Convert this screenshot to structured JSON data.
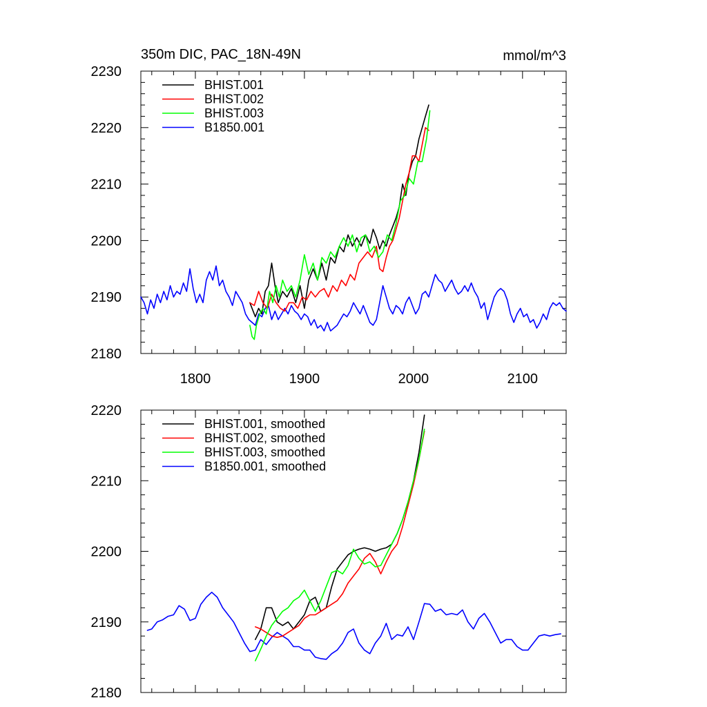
{
  "chart_data": [
    {
      "type": "line",
      "title": "350m DIC, PAC_18N-49N",
      "units": "mmol/m^3",
      "xlim": [
        1750,
        2140
      ],
      "ylim": [
        2180,
        2230
      ],
      "xticks": [
        1800,
        1900,
        2000,
        2100
      ],
      "yticks": [
        2180,
        2190,
        2200,
        2210,
        2220,
        2230
      ],
      "show_x_tick_labels": true,
      "grid": false,
      "legend_position": "top-left",
      "series": [
        {
          "name": "BHIST.001",
          "color": "#000000",
          "x": [
            1850,
            1855,
            1858,
            1861,
            1864,
            1867,
            1870,
            1873,
            1876,
            1880,
            1884,
            1888,
            1892,
            1896,
            1900,
            1904,
            1908,
            1912,
            1916,
            1920,
            1924,
            1928,
            1932,
            1936,
            1940,
            1944,
            1948,
            1952,
            1956,
            1960,
            1963,
            1966,
            1969,
            1972,
            1975,
            1978,
            1981,
            1984,
            1987,
            1990,
            1993,
            1996,
            1999,
            2002,
            2005,
            2008,
            2011,
            2014
          ],
          "y": [
            2189.0,
            2186.5,
            2188.0,
            2187.0,
            2191.0,
            2192.0,
            2196.0,
            2192.0,
            2189.0,
            2191.0,
            2190.0,
            2191.5,
            2189.0,
            2192.0,
            2188.0,
            2193.0,
            2195.0,
            2193.0,
            2196.0,
            2193.0,
            2197.0,
            2196.0,
            2199.0,
            2198.0,
            2201.0,
            2199.0,
            2200.5,
            2199.0,
            2201.0,
            2199.5,
            2202.0,
            2200.5,
            2198.5,
            2200.0,
            2199.0,
            2201.0,
            2202.5,
            2204.0,
            2206.0,
            2210.0,
            2208.0,
            2212.0,
            2214.0,
            2215.0,
            2218.0,
            2220.0,
            2222.0,
            2224.0
          ]
        },
        {
          "name": "BHIST.002",
          "color": "#ff0000",
          "x": [
            1850,
            1854,
            1858,
            1862,
            1866,
            1870,
            1874,
            1878,
            1882,
            1886,
            1890,
            1894,
            1898,
            1902,
            1906,
            1910,
            1914,
            1918,
            1922,
            1926,
            1930,
            1934,
            1938,
            1942,
            1946,
            1950,
            1954,
            1958,
            1962,
            1966,
            1969,
            1972,
            1975,
            1978,
            1981,
            1984,
            1987,
            1990,
            1993,
            1996,
            1999,
            2002,
            2005,
            2008,
            2011,
            2014
          ],
          "y": [
            2189.0,
            2188.5,
            2191.0,
            2189.0,
            2188.0,
            2190.5,
            2189.0,
            2188.0,
            2187.5,
            2189.0,
            2189.0,
            2188.0,
            2190.0,
            2189.5,
            2191.0,
            2190.0,
            2191.0,
            2191.5,
            2190.0,
            2192.0,
            2191.0,
            2193.0,
            2192.0,
            2194.0,
            2193.0,
            2196.0,
            2197.0,
            2198.0,
            2197.0,
            2199.0,
            2195.0,
            2194.5,
            2197.0,
            2199.0,
            2200.0,
            2202.0,
            2204.0,
            2207.0,
            2210.0,
            2212.0,
            2215.0,
            2215.0,
            2214.0,
            2217.0,
            2220.0,
            2219.5
          ]
        },
        {
          "name": "BHIST.003",
          "color": "#00ff00",
          "x": [
            1850,
            1852,
            1854,
            1856,
            1859,
            1862,
            1865,
            1868,
            1871,
            1874,
            1877,
            1880,
            1884,
            1888,
            1892,
            1896,
            1900,
            1904,
            1908,
            1912,
            1916,
            1920,
            1924,
            1928,
            1932,
            1936,
            1940,
            1944,
            1948,
            1952,
            1956,
            1960,
            1964,
            1968,
            1972,
            1976,
            1980,
            1984,
            1988,
            1992,
            1996,
            2000,
            2004,
            2008,
            2012,
            2015
          ],
          "y": [
            2185.0,
            2183.0,
            2182.5,
            2185.0,
            2187.0,
            2188.0,
            2187.0,
            2191.0,
            2189.0,
            2192.0,
            2190.0,
            2193.0,
            2191.0,
            2192.0,
            2190.0,
            2193.0,
            2197.5,
            2194.0,
            2196.0,
            2193.0,
            2197.0,
            2196.0,
            2198.0,
            2197.0,
            2199.0,
            2200.5,
            2199.0,
            2201.0,
            2198.0,
            2200.5,
            2201.0,
            2198.0,
            2199.0,
            2197.0,
            2198.0,
            2201.0,
            2200.0,
            2203.0,
            2207.0,
            2208.0,
            2211.0,
            2210.0,
            2214.0,
            2214.0,
            2218.0,
            2223.0
          ]
        },
        {
          "name": "B1850.001",
          "color": "#0000ff",
          "x": [
            1750,
            1753,
            1756,
            1759,
            1762,
            1765,
            1768,
            1771,
            1774,
            1777,
            1780,
            1783,
            1786,
            1789,
            1792,
            1795,
            1798,
            1801,
            1804,
            1807,
            1810,
            1813,
            1816,
            1819,
            1822,
            1825,
            1828,
            1831,
            1834,
            1837,
            1840,
            1843,
            1846,
            1849,
            1852,
            1855,
            1858,
            1861,
            1864,
            1867,
            1870,
            1873,
            1876,
            1879,
            1882,
            1885,
            1888,
            1891,
            1894,
            1897,
            1900,
            1903,
            1906,
            1909,
            1912,
            1915,
            1918,
            1921,
            1924,
            1927,
            1930,
            1933,
            1936,
            1939,
            1942,
            1945,
            1948,
            1951,
            1954,
            1957,
            1960,
            1963,
            1966,
            1969,
            1972,
            1975,
            1978,
            1981,
            1984,
            1987,
            1990,
            1993,
            1996,
            1999,
            2002,
            2005,
            2008,
            2011,
            2014,
            2017,
            2020,
            2023,
            2026,
            2029,
            2032,
            2035,
            2038,
            2041,
            2044,
            2047,
            2050,
            2053,
            2056,
            2059,
            2062,
            2065,
            2068,
            2071,
            2074,
            2077,
            2080,
            2083,
            2086,
            2089,
            2092,
            2095,
            2098,
            2101,
            2104,
            2107,
            2110,
            2113,
            2116,
            2119,
            2122,
            2125,
            2128,
            2131,
            2134,
            2137,
            2140
          ],
          "y": [
            2190.0,
            2189.0,
            2187.0,
            2189.5,
            2188.0,
            2190.5,
            2189.0,
            2191.0,
            2189.5,
            2192.0,
            2190.0,
            2191.0,
            2190.5,
            2192.5,
            2191.0,
            2195.0,
            2191.5,
            2189.0,
            2190.5,
            2189.0,
            2193.0,
            2194.5,
            2193.0,
            2195.5,
            2192.0,
            2193.0,
            2191.0,
            2190.0,
            2188.5,
            2191.0,
            2190.0,
            2189.0,
            2187.0,
            2186.0,
            2185.5,
            2185.0,
            2187.0,
            2186.5,
            2188.0,
            2188.5,
            2186.0,
            2187.5,
            2186.0,
            2187.0,
            2188.0,
            2187.0,
            2188.5,
            2187.5,
            2187.0,
            2186.0,
            2187.0,
            2186.5,
            2185.0,
            2186.0,
            2184.5,
            2185.0,
            2184.0,
            2185.5,
            2184.0,
            2184.5,
            2185.0,
            2186.0,
            2187.0,
            2186.5,
            2187.5,
            2189.0,
            2188.0,
            2187.0,
            2188.5,
            2187.0,
            2185.5,
            2185.0,
            2186.0,
            2189.0,
            2192.0,
            2190.0,
            2188.0,
            2187.0,
            2188.5,
            2188.0,
            2187.0,
            2189.0,
            2190.0,
            2188.5,
            2187.0,
            2188.0,
            2190.5,
            2191.0,
            2190.0,
            2192.0,
            2194.0,
            2193.0,
            2192.5,
            2191.0,
            2192.0,
            2193.0,
            2191.5,
            2190.5,
            2191.0,
            2192.0,
            2191.0,
            2192.5,
            2191.0,
            2190.0,
            2188.0,
            2189.0,
            2186.0,
            2188.0,
            2190.0,
            2191.0,
            2191.5,
            2191.0,
            2189.5,
            2187.0,
            2185.5,
            2187.0,
            2188.0,
            2186.5,
            2187.0,
            2185.5,
            2186.0,
            2184.5,
            2185.5,
            2187.0,
            2186.0,
            2188.0,
            2189.0,
            2188.5,
            2189.0,
            2188.0,
            2187.5
          ]
        }
      ]
    },
    {
      "type": "line",
      "xlim": [
        1750,
        2140
      ],
      "ylim": [
        2180,
        2220
      ],
      "xticks": [
        1800,
        1900,
        2000,
        2100
      ],
      "yticks": [
        2180,
        2190,
        2200,
        2210,
        2220
      ],
      "show_x_tick_labels": false,
      "grid": false,
      "legend_position": "top-left",
      "series": [
        {
          "name": "BHIST.001, smoothed",
          "color": "#000000",
          "x": [
            1855,
            1860,
            1865,
            1870,
            1875,
            1880,
            1885,
            1890,
            1895,
            1900,
            1905,
            1910,
            1915,
            1920,
            1925,
            1930,
            1935,
            1940,
            1945,
            1950,
            1955,
            1960,
            1965,
            1970,
            1975,
            1980,
            1985,
            1990,
            1995,
            2000,
            2005,
            2010
          ],
          "y": [
            2187.5,
            2189.0,
            2192.0,
            2192.0,
            2190.0,
            2189.5,
            2190.0,
            2189.0,
            2190.0,
            2191.0,
            2193.0,
            2193.5,
            2191.5,
            2192.0,
            2195.0,
            2197.5,
            2198.5,
            2199.5,
            2200.0,
            2200.3,
            2200.5,
            2200.3,
            2200.0,
            2200.3,
            2200.5,
            2201.0,
            2202.5,
            2204.5,
            2207.0,
            2210.0,
            2214.0,
            2219.3
          ]
        },
        {
          "name": "BHIST.002, smoothed",
          "color": "#ff0000",
          "x": [
            1855,
            1860,
            1865,
            1870,
            1875,
            1880,
            1885,
            1890,
            1895,
            1900,
            1905,
            1910,
            1915,
            1920,
            1925,
            1930,
            1935,
            1940,
            1945,
            1950,
            1955,
            1960,
            1965,
            1970,
            1975,
            1980,
            1985,
            1990,
            1995,
            2000,
            2005,
            2010
          ],
          "y": [
            2189.3,
            2189.0,
            2188.5,
            2188.0,
            2187.8,
            2188.0,
            2188.5,
            2189.0,
            2189.5,
            2190.5,
            2191.0,
            2191.0,
            2191.5,
            2192.0,
            2192.5,
            2193.0,
            2194.0,
            2195.5,
            2196.5,
            2197.5,
            2199.0,
            2199.7,
            2198.5,
            2196.8,
            2198.5,
            2200.0,
            2201.0,
            2203.5,
            2206.5,
            2209.5,
            2213.0,
            2217.0
          ]
        },
        {
          "name": "BHIST.003, smoothed",
          "color": "#00ff00",
          "x": [
            1855,
            1858,
            1861,
            1865,
            1870,
            1875,
            1880,
            1885,
            1890,
            1895,
            1900,
            1905,
            1910,
            1915,
            1920,
            1925,
            1930,
            1935,
            1940,
            1945,
            1950,
            1955,
            1960,
            1965,
            1970,
            1975,
            1980,
            1985,
            1990,
            1995,
            2000,
            2005,
            2010
          ],
          "y": [
            2184.5,
            2185.5,
            2186.5,
            2188.0,
            2189.5,
            2190.5,
            2191.5,
            2192.0,
            2193.0,
            2193.5,
            2194.5,
            2193.0,
            2191.5,
            2193.0,
            2195.0,
            2197.0,
            2197.3,
            2196.8,
            2198.0,
            2200.3,
            2199.0,
            2198.2,
            2198.5,
            2197.8,
            2198.0,
            2199.5,
            2201.0,
            2202.5,
            2204.5,
            2207.0,
            2210.0,
            2213.0,
            2217.3
          ]
        },
        {
          "name": "B1850.001, smoothed",
          "color": "#0000ff",
          "x": [
            1756,
            1760,
            1765,
            1770,
            1775,
            1780,
            1785,
            1790,
            1795,
            1800,
            1805,
            1810,
            1815,
            1820,
            1825,
            1830,
            1835,
            1840,
            1845,
            1850,
            1855,
            1860,
            1865,
            1870,
            1875,
            1880,
            1885,
            1890,
            1895,
            1900,
            1905,
            1910,
            1915,
            1920,
            1925,
            1930,
            1935,
            1940,
            1945,
            1950,
            1955,
            1960,
            1965,
            1970,
            1975,
            1980,
            1985,
            1990,
            1995,
            2000,
            2005,
            2010,
            2015,
            2020,
            2025,
            2030,
            2035,
            2040,
            2045,
            2050,
            2055,
            2060,
            2065,
            2070,
            2075,
            2080,
            2085,
            2090,
            2095,
            2100,
            2105,
            2110,
            2115,
            2120,
            2125,
            2130,
            2135
          ],
          "y": [
            2188.8,
            2189.0,
            2190.0,
            2190.3,
            2190.8,
            2191.0,
            2192.3,
            2191.8,
            2190.2,
            2190.5,
            2192.5,
            2193.5,
            2194.2,
            2193.5,
            2192.0,
            2191.0,
            2190.0,
            2188.5,
            2187.0,
            2185.8,
            2186.0,
            2187.5,
            2186.8,
            2187.8,
            2188.5,
            2188.0,
            2187.5,
            2186.5,
            2186.5,
            2186.0,
            2186.0,
            2185.0,
            2184.8,
            2184.7,
            2185.5,
            2186.0,
            2187.0,
            2188.5,
            2189.0,
            2187.0,
            2186.0,
            2185.5,
            2187.0,
            2188.0,
            2189.8,
            2187.5,
            2188.2,
            2188.0,
            2189.3,
            2187.5,
            2190.0,
            2192.6,
            2192.5,
            2191.5,
            2191.8,
            2191.0,
            2191.2,
            2191.0,
            2191.7,
            2190.0,
            2189.0,
            2190.5,
            2191.2,
            2190.0,
            2188.5,
            2187.0,
            2187.5,
            2187.5,
            2186.5,
            2186.0,
            2186.0,
            2187.0,
            2188.0,
            2188.2,
            2188.0,
            2188.2,
            2188.3
          ]
        }
      ]
    }
  ]
}
